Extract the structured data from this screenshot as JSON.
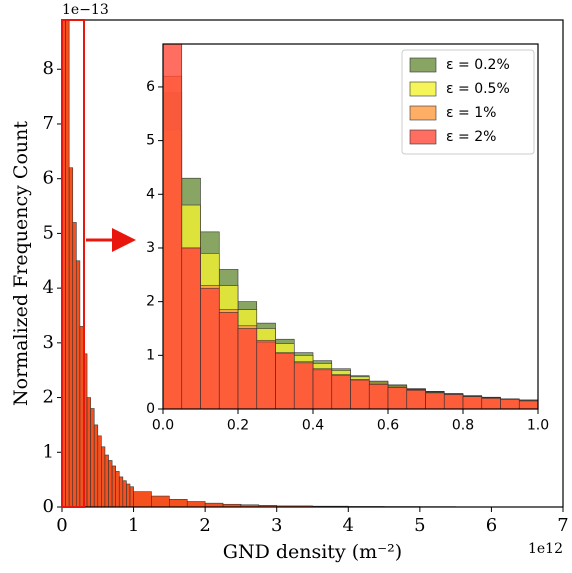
{
  "chart_data": [
    {
      "type": "histogram",
      "xlabel": "GND density (m⁻²)",
      "ylabel": "Normalized Frequency Count",
      "x_offset_label": "1e12",
      "y_offset_label": "1e−13",
      "bins": [
        0,
        0.05,
        0.1,
        0.15,
        0.2,
        0.25,
        0.3,
        0.35,
        0.4,
        0.45,
        0.5,
        0.55,
        0.6,
        0.65,
        0.7,
        0.75,
        0.8,
        0.85,
        0.9,
        0.95,
        1,
        1.25,
        1.5,
        1.75,
        2,
        2.25,
        2.5,
        2.75,
        3,
        3.5,
        4,
        4.5,
        5,
        5.5,
        6,
        6.5,
        7
      ],
      "values": [
        8.9,
        8.9,
        6.2,
        5.2,
        4.5,
        3.3,
        2.8,
        2.0,
        1.8,
        1.5,
        1.3,
        1.1,
        0.95,
        0.85,
        0.75,
        0.65,
        0.55,
        0.48,
        0.42,
        0.37,
        0.28,
        0.2,
        0.14,
        0.1,
        0.07,
        0.05,
        0.04,
        0.03,
        0.02,
        0.015,
        0.01,
        0.008,
        0.006,
        0.004,
        0.003,
        0.002
      ],
      "color": "#f4511e",
      "edgecolor": "#333333",
      "xlim": [
        0,
        7
      ],
      "ylim": [
        0,
        8.9
      ],
      "xticks": [
        0,
        1,
        2,
        3,
        4,
        5,
        6,
        7
      ],
      "yticks": [
        0,
        1,
        2,
        3,
        4,
        5,
        6,
        7,
        8
      ]
    },
    {
      "type": "histogram",
      "bins": [
        0,
        0.05,
        0.1,
        0.15,
        0.2,
        0.25,
        0.3,
        0.35,
        0.4,
        0.45,
        0.5,
        0.55,
        0.6,
        0.65,
        0.7,
        0.75,
        0.8,
        0.85,
        0.9,
        0.95,
        1.0
      ],
      "series": [
        {
          "name": "ε = 0.2%",
          "color": "#6b8e3d",
          "values": [
            5.9,
            4.3,
            3.3,
            2.6,
            2.0,
            1.6,
            1.3,
            1.05,
            0.9,
            0.75,
            0.62,
            0.52,
            0.45,
            0.38,
            0.33,
            0.29,
            0.25,
            0.22,
            0.19,
            0.17
          ]
        },
        {
          "name": "ε = 0.5%",
          "color": "#f2f230",
          "values": [
            5.2,
            3.8,
            2.9,
            2.3,
            1.85,
            1.5,
            1.22,
            1.0,
            0.85,
            0.72,
            0.6,
            0.5,
            0.43,
            0.37,
            0.32,
            0.28,
            0.24,
            0.21,
            0.19,
            0.16
          ]
        },
        {
          "name": "ε = 1%",
          "color": "#ff9a40",
          "values": [
            6.2,
            3.0,
            2.3,
            1.85,
            1.55,
            1.28,
            1.05,
            0.88,
            0.75,
            0.64,
            0.55,
            0.47,
            0.41,
            0.36,
            0.31,
            0.27,
            0.24,
            0.21,
            0.18,
            0.16
          ]
        },
        {
          "name": "ε = 2%",
          "color": "#ff4a3a",
          "values": [
            6.8,
            3.0,
            2.25,
            1.8,
            1.5,
            1.25,
            1.03,
            0.86,
            0.73,
            0.63,
            0.54,
            0.46,
            0.4,
            0.35,
            0.3,
            0.27,
            0.23,
            0.2,
            0.18,
            0.15
          ]
        }
      ],
      "edgecolor": "#333333",
      "legend": "upper right",
      "xlim": [
        0,
        1.0
      ],
      "ylim": [
        0,
        6.8
      ],
      "xticks": [
        {
          "value": 0,
          "label": "0.0"
        },
        {
          "value": 0.2,
          "label": "0.2"
        },
        {
          "value": 0.4,
          "label": "0.4"
        },
        {
          "value": 0.6,
          "label": "0.6"
        },
        {
          "value": 0.8,
          "label": "0.8"
        },
        {
          "value": 1.0,
          "label": "1.0"
        }
      ],
      "yticks": [
        0,
        1,
        2,
        3,
        4,
        5,
        6
      ]
    }
  ]
}
